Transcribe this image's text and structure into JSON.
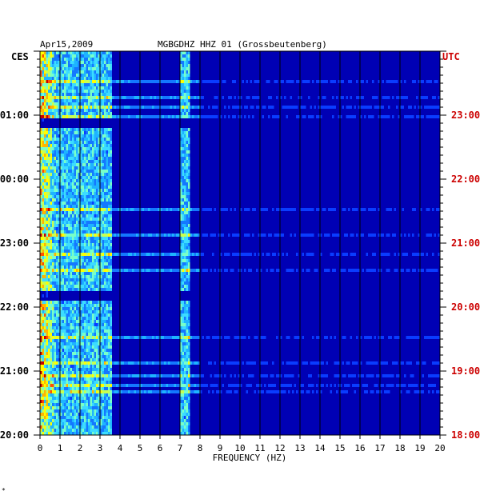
{
  "header": {
    "date": "Apr15,2009",
    "station": "MGBGDHZ HHZ 01 (Grossbeutenberg)"
  },
  "left_axis_unit": "CES",
  "right_axis_unit": "UTC",
  "colors": {
    "background": "#0000b4",
    "grid": "#000000",
    "left_text": "#000000",
    "right_text": "#cc0000"
  },
  "chart_data": {
    "type": "heatmap",
    "title": "",
    "xlabel": "FREQUENCY (HZ)",
    "x_ticks": [
      "0",
      "1",
      "2",
      "3",
      "4",
      "5",
      "6",
      "7",
      "8",
      "9",
      "10",
      "11",
      "12",
      "13",
      "14",
      "15",
      "16",
      "17",
      "18",
      "19",
      "20"
    ],
    "xlim": [
      0,
      20
    ],
    "left_y_ticks": [
      "01:00",
      "00:00",
      "23:00",
      "22:00",
      "21:00",
      "20:00"
    ],
    "right_y_ticks": [
      "23:00",
      "22:00",
      "21:00",
      "20:00",
      "19:00",
      "18:00"
    ],
    "grid": true,
    "dominant_bands_hz": [
      {
        "from": 0,
        "to": 1,
        "level": "high"
      },
      {
        "from": 1,
        "to": 3.5,
        "level": "medium"
      },
      {
        "from": 7,
        "to": 7.4,
        "level": "medium"
      }
    ],
    "quiet_stripes_utc": [
      "22:55",
      "20:15"
    ]
  },
  "footnote": "*"
}
